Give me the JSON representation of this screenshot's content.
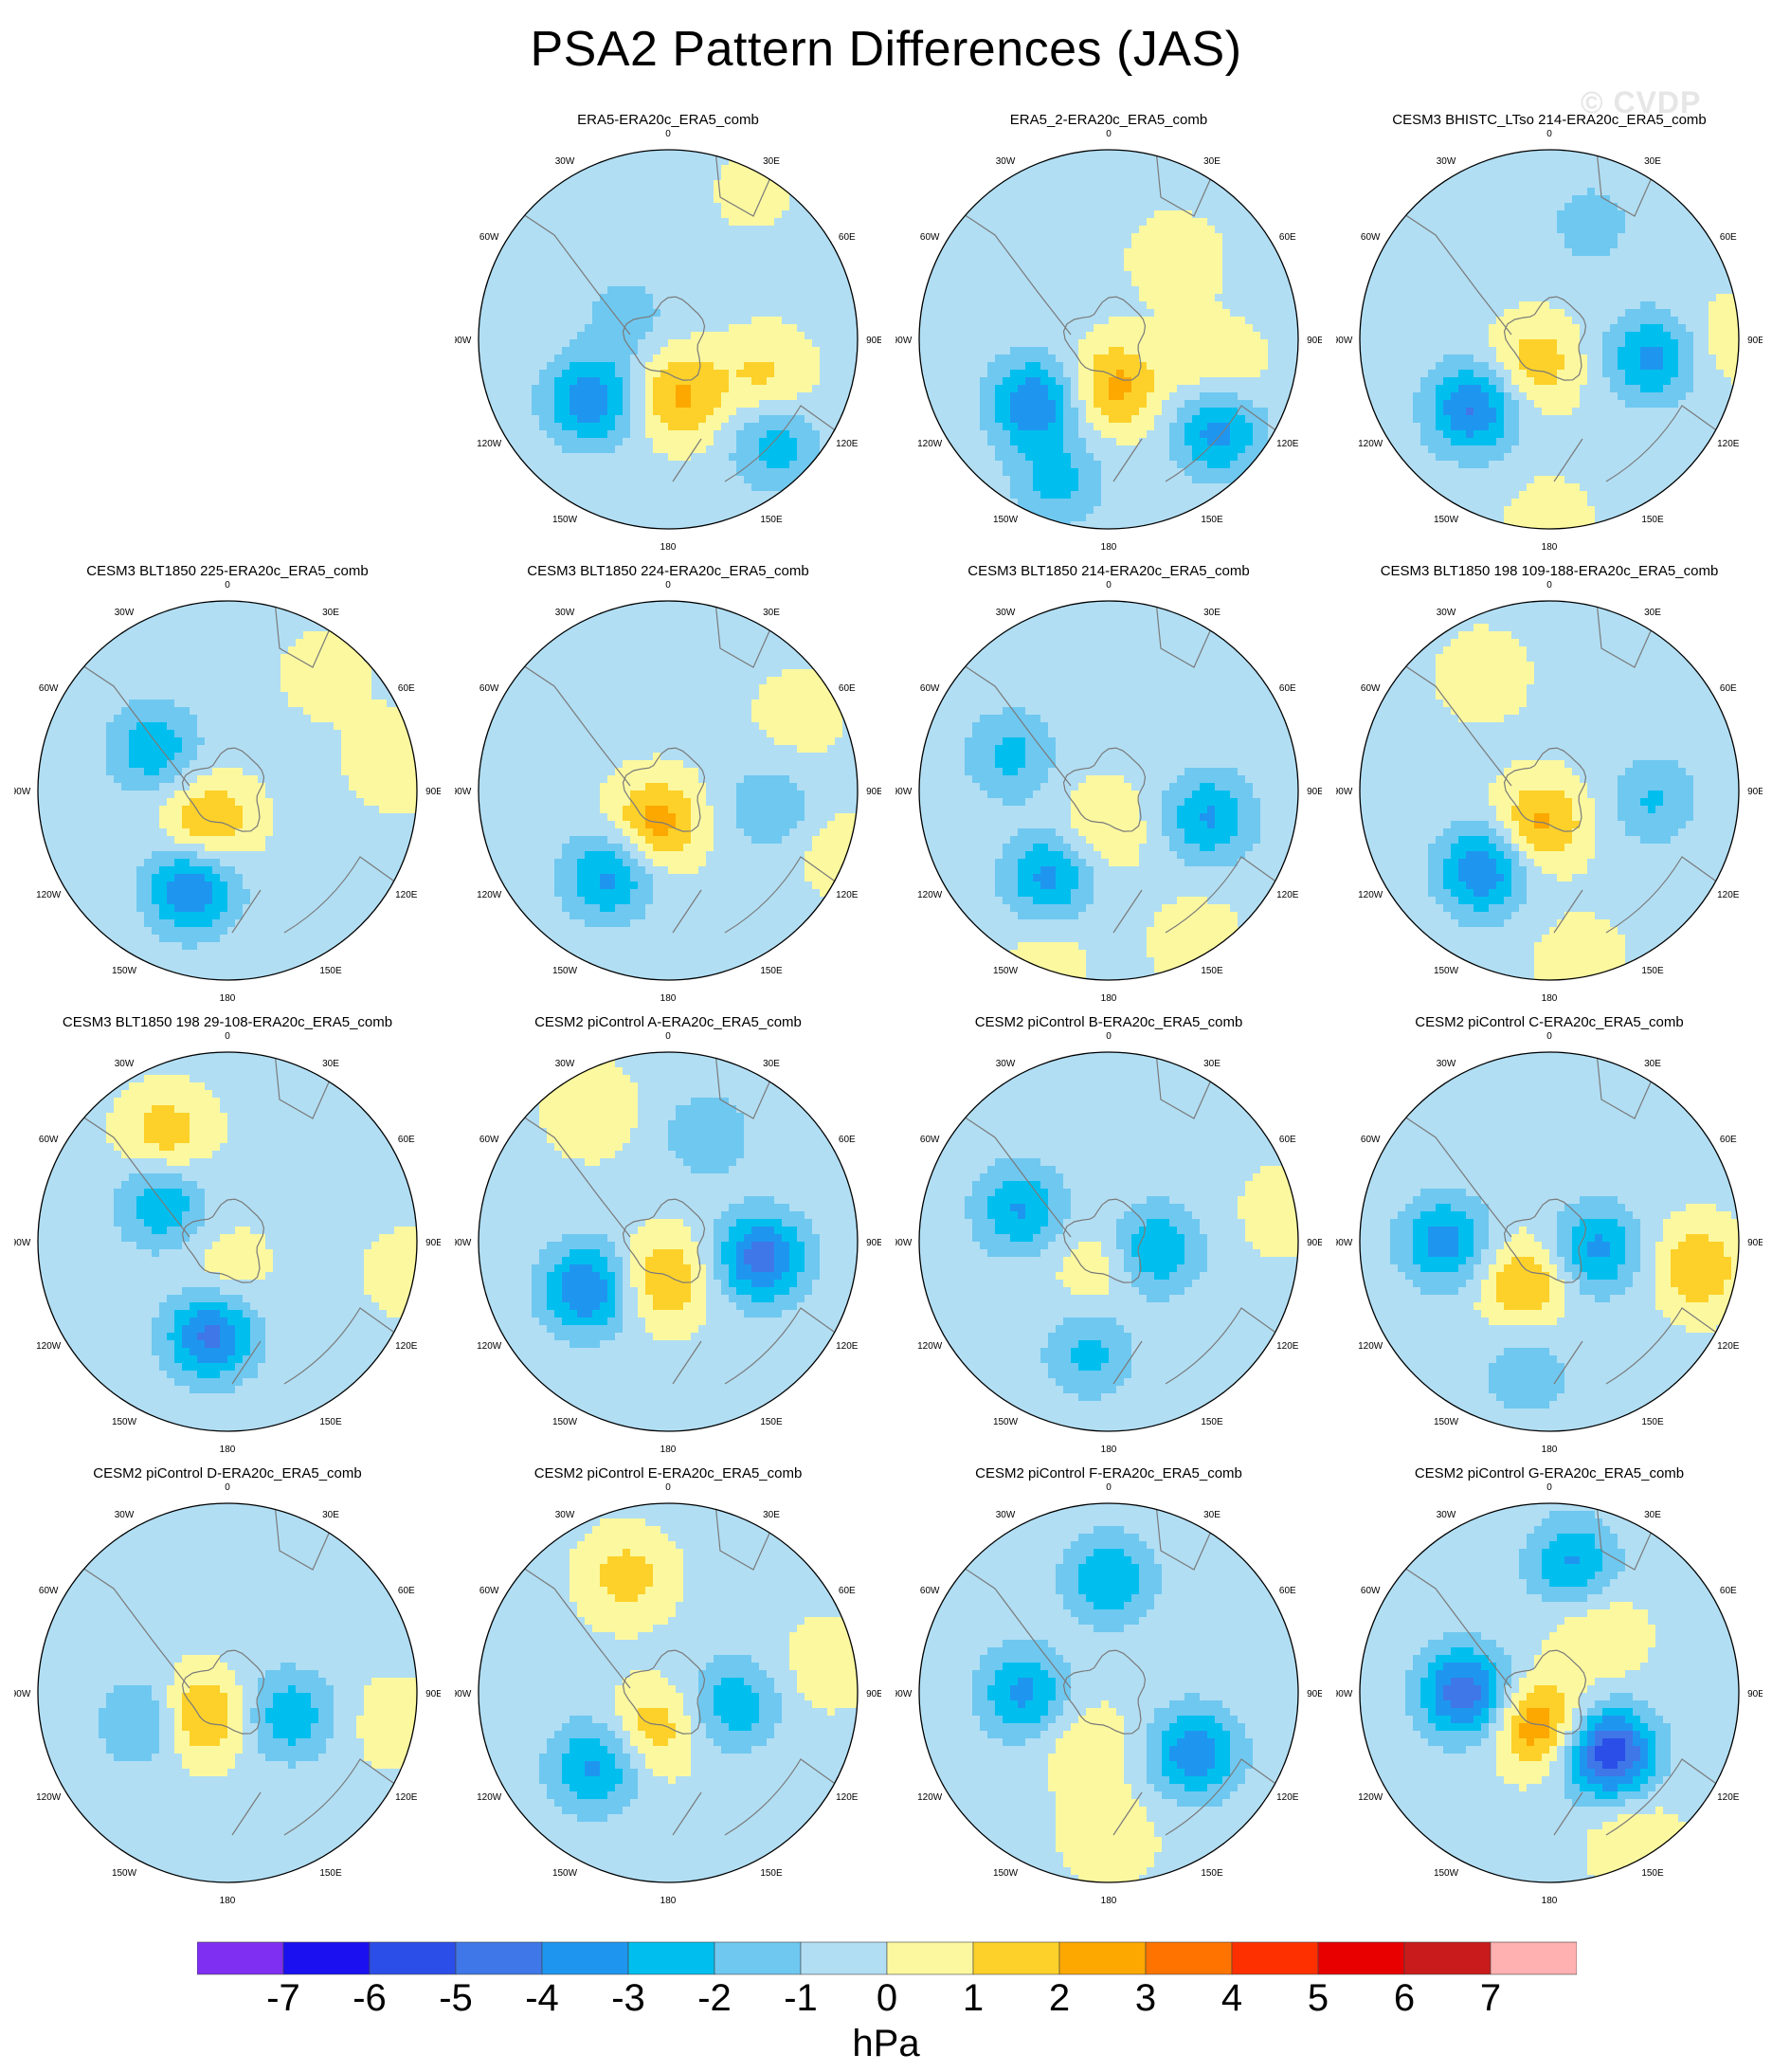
{
  "title": "PSA2 Pattern Differences (JAS)",
  "watermark": "© CVDP",
  "colors": {
    "levels": [
      "#7f2ff2",
      "#1a10f0",
      "#2b4ee8",
      "#3f77e8",
      "#1e96f0",
      "#00bfee",
      "#6fc8f0",
      "#b1def3",
      "#fbf8a0",
      "#fdd12a",
      "#fca800",
      "#ff7400",
      "#ff3000",
      "#e80000",
      "#c91b1b",
      "#ffb0b0"
    ],
    "coast": "#7a7a7a",
    "border": "#000000"
  },
  "colorbar": {
    "labels": [
      "-7",
      "-6",
      "-5",
      "-4",
      "-3",
      "-2",
      "-1",
      "0",
      "1",
      "2",
      "3",
      "4",
      "5",
      "6",
      "7"
    ],
    "units": "hPa"
  },
  "map_labels": {
    "lon_0": "0",
    "lon_30e": "30E",
    "lon_60e": "60E",
    "lon_90e": "90E",
    "lon_120e": "120E",
    "lon_150e": "150E",
    "lon_180": "180",
    "lon_150w": "150W",
    "lon_120w": "120W",
    "lon_90w": "90W",
    "lon_60w": "60W",
    "lon_30w": "30W"
  },
  "panels": [
    {
      "title": "ERA5-ERA20c_ERA5_comb",
      "pattern": [
        {
          "a": 110,
          "r": 0.55,
          "v": 1.5
        },
        {
          "a": 168,
          "r": 0.3,
          "v": 2.5
        },
        {
          "a": 232,
          "r": 0.52,
          "v": -3.5
        },
        {
          "a": 135,
          "r": 0.8,
          "v": -2.2
        },
        {
          "a": 300,
          "r": 0.25,
          "v": -1.2
        },
        {
          "a": 30,
          "r": 0.9,
          "v": 0.6
        }
      ]
    },
    {
      "title": "ERA5_2-ERA20c_ERA5_comb",
      "pattern": [
        {
          "a": 105,
          "r": 0.6,
          "v": 1.3
        },
        {
          "a": 172,
          "r": 0.25,
          "v": 2.6
        },
        {
          "a": 230,
          "r": 0.52,
          "v": -3.6
        },
        {
          "a": 130,
          "r": 0.75,
          "v": -3.2
        },
        {
          "a": 200,
          "r": 0.8,
          "v": -2.0
        },
        {
          "a": 40,
          "r": 0.55,
          "v": 1.0
        }
      ]
    },
    {
      "title": "CESM3 BHISTC_LTso 214-ERA20c_ERA5_comb",
      "pattern": [
        {
          "a": 100,
          "r": 0.55,
          "v": -3.0
        },
        {
          "a": 210,
          "r": 0.15,
          "v": 2.0
        },
        {
          "a": 228,
          "r": 0.55,
          "v": -3.8
        },
        {
          "a": 90,
          "r": 0.95,
          "v": 1.0
        },
        {
          "a": 20,
          "r": 0.65,
          "v": -1.2
        },
        {
          "a": 180,
          "r": 0.95,
          "v": 0.8
        }
      ]
    },
    {
      "title": "CESM3 BLT1850 225-ERA20c_ERA5_comb",
      "pattern": [
        {
          "a": 210,
          "r": 0.2,
          "v": 2.5
        },
        {
          "a": 200,
          "r": 0.55,
          "v": -3.8
        },
        {
          "a": 300,
          "r": 0.45,
          "v": -2.5
        },
        {
          "a": 80,
          "r": 0.9,
          "v": 1.2
        },
        {
          "a": 40,
          "r": 0.8,
          "v": 0.8
        }
      ]
    },
    {
      "title": "CESM3 BLT1850 224-ERA20c_ERA5_comb",
      "pattern": [
        {
          "a": 200,
          "r": 0.18,
          "v": 2.8
        },
        {
          "a": 215,
          "r": 0.55,
          "v": -3.0
        },
        {
          "a": 100,
          "r": 0.55,
          "v": -1.6
        },
        {
          "a": 60,
          "r": 0.8,
          "v": 0.9
        },
        {
          "a": 110,
          "r": 0.95,
          "v": 0.9
        }
      ]
    },
    {
      "title": "CESM3 BLT1850 214-ERA20c_ERA5_comb",
      "pattern": [
        {
          "a": 105,
          "r": 0.55,
          "v": -2.8
        },
        {
          "a": 215,
          "r": 0.55,
          "v": -3.0
        },
        {
          "a": 190,
          "r": 0.2,
          "v": 1.4
        },
        {
          "a": 290,
          "r": 0.55,
          "v": -2.0
        },
        {
          "a": 150,
          "r": 0.92,
          "v": 1.0
        },
        {
          "a": 200,
          "r": 0.95,
          "v": 0.8
        }
      ]
    },
    {
      "title": "CESM3 BLT1850 198 109-188-ERA20c_ERA5_comb",
      "pattern": [
        {
          "a": 195,
          "r": 0.18,
          "v": 2.6
        },
        {
          "a": 220,
          "r": 0.55,
          "v": -3.6
        },
        {
          "a": 95,
          "r": 0.55,
          "v": -1.8
        },
        {
          "a": 330,
          "r": 0.7,
          "v": 1.0
        },
        {
          "a": 170,
          "r": 0.92,
          "v": 1.0
        }
      ]
    },
    {
      "title": "CESM3 BLT1850 198 29-108-ERA20c_ERA5_comb",
      "pattern": [
        {
          "a": 190,
          "r": 0.5,
          "v": -4.0
        },
        {
          "a": 300,
          "r": 0.4,
          "v": -2.6
        },
        {
          "a": 330,
          "r": 0.65,
          "v": 2.0
        },
        {
          "a": 180,
          "r": 0.15,
          "v": 1.0
        },
        {
          "a": 100,
          "r": 0.95,
          "v": 0.8
        }
      ]
    },
    {
      "title": "CESM2 piControl A-ERA20c_ERA5_comb",
      "pattern": [
        {
          "a": 100,
          "r": 0.5,
          "v": -4.2
        },
        {
          "a": 240,
          "r": 0.5,
          "v": -3.8
        },
        {
          "a": 185,
          "r": 0.2,
          "v": 2.4
        },
        {
          "a": 20,
          "r": 0.6,
          "v": -1.5
        },
        {
          "a": 330,
          "r": 0.8,
          "v": 1.2
        }
      ]
    },
    {
      "title": "CESM2 piControl B-ERA20c_ERA5_comb",
      "pattern": [
        {
          "a": 100,
          "r": 0.25,
          "v": -2.8
        },
        {
          "a": 290,
          "r": 0.5,
          "v": -2.8
        },
        {
          "a": 190,
          "r": 0.6,
          "v": -2.0
        },
        {
          "a": 80,
          "r": 0.95,
          "v": 1.0
        },
        {
          "a": 200,
          "r": 0.15,
          "v": 1.2
        }
      ]
    },
    {
      "title": "CESM2 piControl C-ERA20c_ERA5_comb",
      "pattern": [
        {
          "a": 100,
          "r": 0.25,
          "v": -3.0
        },
        {
          "a": 270,
          "r": 0.55,
          "v": -3.2
        },
        {
          "a": 210,
          "r": 0.25,
          "v": 2.5
        },
        {
          "a": 100,
          "r": 0.8,
          "v": 2.2
        },
        {
          "a": 190,
          "r": 0.7,
          "v": -1.5
        }
      ]
    },
    {
      "title": "CESM2 piControl D-ERA20c_ERA5_comb",
      "pattern": [
        {
          "a": 110,
          "r": 0.35,
          "v": -2.5
        },
        {
          "a": 250,
          "r": 0.45,
          "v": -2.2
        },
        {
          "a": 230,
          "r": 0.2,
          "v": 2.8
        },
        {
          "a": 100,
          "r": 0.9,
          "v": 1.0
        }
      ]
    },
    {
      "title": "CESM2 piControl E-ERA20c_ERA5_comb",
      "pattern": [
        {
          "a": 100,
          "r": 0.35,
          "v": -2.5
        },
        {
          "a": 225,
          "r": 0.55,
          "v": -3.0
        },
        {
          "a": 200,
          "r": 0.2,
          "v": 2.0
        },
        {
          "a": 340,
          "r": 0.65,
          "v": 1.8
        },
        {
          "a": 80,
          "r": 0.85,
          "v": 1.0
        }
      ]
    },
    {
      "title": "CESM2 piControl F-ERA20c_ERA5_comb",
      "pattern": [
        {
          "a": 125,
          "r": 0.55,
          "v": -3.5
        },
        {
          "a": 270,
          "r": 0.45,
          "v": -3.0
        },
        {
          "a": 0,
          "r": 0.6,
          "v": -2.6
        },
        {
          "a": 200,
          "r": 0.3,
          "v": 1.2
        },
        {
          "a": 180,
          "r": 0.75,
          "v": 1.2
        }
      ]
    },
    {
      "title": "CESM2 piControl G-ERA20c_ERA5_comb",
      "pattern": [
        {
          "a": 135,
          "r": 0.45,
          "v": -5.5
        },
        {
          "a": 270,
          "r": 0.45,
          "v": -4.5
        },
        {
          "a": 10,
          "r": 0.7,
          "v": -2.8
        },
        {
          "a": 200,
          "r": 0.18,
          "v": 3.2
        },
        {
          "a": 150,
          "r": 0.9,
          "v": 1.3
        },
        {
          "a": 40,
          "r": 0.4,
          "v": 1.4
        }
      ]
    }
  ]
}
